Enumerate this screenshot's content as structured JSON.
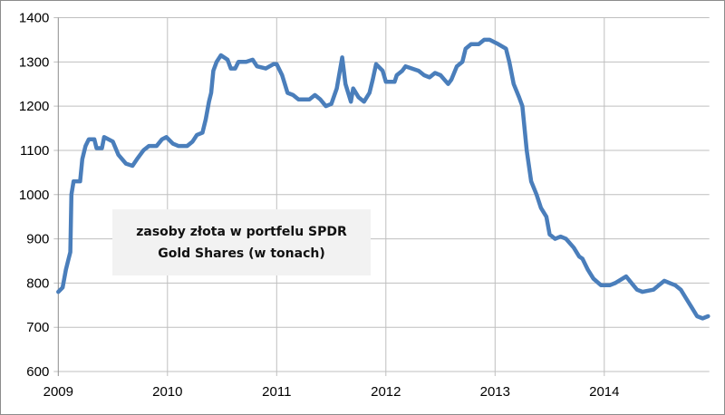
{
  "chart_data": {
    "type": "line",
    "title": "",
    "annotation": [
      "zasoby złota w portfelu SPDR",
      "Gold Shares (w tonach)"
    ],
    "xlabel": "",
    "ylabel": "",
    "xlim": [
      2009,
      2014.95
    ],
    "ylim": [
      600,
      1400
    ],
    "grid": true,
    "x_ticks": [
      "2009",
      "2010",
      "2011",
      "2012",
      "2013",
      "2014"
    ],
    "y_ticks": [
      "600",
      "700",
      "800",
      "900",
      "1000",
      "1100",
      "1200",
      "1300",
      "1400"
    ],
    "series": [
      {
        "name": "zasoby złota SPDR Gold Shares (tony)",
        "color": "#4a7ebb",
        "x": [
          2009.0,
          2009.04,
          2009.07,
          2009.09,
          2009.11,
          2009.12,
          2009.14,
          2009.2,
          2009.22,
          2009.25,
          2009.28,
          2009.33,
          2009.35,
          2009.4,
          2009.42,
          2009.5,
          2009.55,
          2009.62,
          2009.68,
          2009.72,
          2009.78,
          2009.83,
          2009.9,
          2009.95,
          2009.99,
          2010.05,
          2010.1,
          2010.18,
          2010.23,
          2010.27,
          2010.32,
          2010.35,
          2010.38,
          2010.4,
          2010.42,
          2010.45,
          2010.49,
          2010.55,
          2010.58,
          2010.62,
          2010.65,
          2010.72,
          2010.78,
          2010.82,
          2010.9,
          2010.97,
          2011.0,
          2011.05,
          2011.1,
          2011.15,
          2011.2,
          2011.3,
          2011.35,
          2011.4,
          2011.45,
          2011.5,
          2011.55,
          2011.6,
          2011.63,
          2011.68,
          2011.7,
          2011.75,
          2011.8,
          2011.85,
          2011.88,
          2011.91,
          2011.97,
          2012.0,
          2012.08,
          2012.1,
          2012.15,
          2012.18,
          2012.3,
          2012.35,
          2012.4,
          2012.45,
          2012.5,
          2012.57,
          2012.6,
          2012.65,
          2012.7,
          2012.73,
          2012.78,
          2012.85,
          2012.9,
          2012.95,
          2013.03,
          2013.1,
          2013.13,
          2013.17,
          2013.22,
          2013.25,
          2013.29,
          2013.33,
          2013.38,
          2013.42,
          2013.47,
          2013.5,
          2013.55,
          2013.6,
          2013.65,
          2013.72,
          2013.77,
          2013.8,
          2013.85,
          2013.9,
          2013.97,
          2014.05,
          2014.1,
          2014.2,
          2014.25,
          2014.3,
          2014.35,
          2014.45,
          2014.5,
          2014.55,
          2014.6,
          2014.65,
          2014.7,
          2014.75,
          2014.8,
          2014.85,
          2014.9,
          2014.95
        ],
        "y": [
          780,
          790,
          830,
          850,
          870,
          1000,
          1030,
          1030,
          1080,
          1110,
          1125,
          1125,
          1105,
          1105,
          1130,
          1120,
          1090,
          1070,
          1065,
          1080,
          1100,
          1110,
          1110,
          1125,
          1130,
          1115,
          1110,
          1110,
          1120,
          1135,
          1140,
          1170,
          1210,
          1230,
          1280,
          1300,
          1315,
          1305,
          1285,
          1285,
          1300,
          1300,
          1305,
          1290,
          1285,
          1295,
          1295,
          1270,
          1230,
          1225,
          1215,
          1215,
          1225,
          1215,
          1200,
          1205,
          1240,
          1310,
          1250,
          1210,
          1240,
          1220,
          1210,
          1230,
          1260,
          1295,
          1280,
          1255,
          1255,
          1270,
          1280,
          1290,
          1280,
          1270,
          1265,
          1275,
          1270,
          1250,
          1260,
          1290,
          1300,
          1330,
          1340,
          1340,
          1350,
          1350,
          1340,
          1330,
          1300,
          1250,
          1220,
          1200,
          1100,
          1030,
          1000,
          970,
          950,
          910,
          900,
          905,
          900,
          880,
          860,
          855,
          830,
          810,
          795,
          795,
          800,
          815,
          800,
          785,
          780,
          785,
          795,
          805,
          800,
          795,
          785,
          765,
          745,
          725,
          720,
          725
        ]
      }
    ]
  }
}
